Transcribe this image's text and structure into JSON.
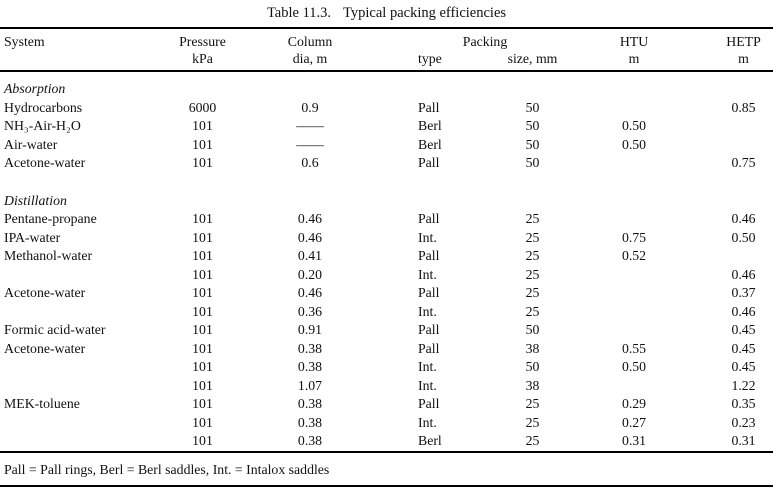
{
  "title": {
    "label": "Table 11.3.",
    "caption": "Typical packing efficiencies"
  },
  "header": {
    "system": "System",
    "pressure": "Pressure",
    "pressure_unit": "kPa",
    "column": "Column",
    "column_unit": "dia, m",
    "packing": "Packing",
    "packing_type": "type",
    "packing_size": "size, mm",
    "htu": "HTU",
    "htu_unit": "m",
    "hetp": "HETP",
    "hetp_unit": "m"
  },
  "sections": [
    {
      "name": "Absorption",
      "rows": [
        {
          "system": "Hydrocarbons",
          "pressure": "6000",
          "dia": "0.9",
          "type": "Pall",
          "size": "50",
          "htu": "",
          "hetp": "0.85"
        },
        {
          "system": "NH₃-Air-H₂O",
          "pressure": "101",
          "dia": "——",
          "type": "Berl",
          "size": "50",
          "htu": "0.50",
          "hetp": ""
        },
        {
          "system": "Air-water",
          "pressure": "101",
          "dia": "——",
          "type": "Berl",
          "size": "50",
          "htu": "0.50",
          "hetp": ""
        },
        {
          "system": "Acetone-water",
          "pressure": "101",
          "dia": "0.6",
          "type": "Pall",
          "size": "50",
          "htu": "",
          "hetp": "0.75"
        }
      ]
    },
    {
      "name": "Distillation",
      "rows": [
        {
          "system": "Pentane-propane",
          "pressure": "101",
          "dia": "0.46",
          "type": "Pall",
          "size": "25",
          "htu": "",
          "hetp": "0.46"
        },
        {
          "system": "IPA-water",
          "pressure": "101",
          "dia": "0.46",
          "type": "Int.",
          "size": "25",
          "htu": "0.75",
          "hetp": "0.50"
        },
        {
          "system": "Methanol-water",
          "pressure": "101",
          "dia": "0.41",
          "type": "Pall",
          "size": "25",
          "htu": "0.52",
          "hetp": ""
        },
        {
          "system": "",
          "pressure": "101",
          "dia": "0.20",
          "type": "Int.",
          "size": "25",
          "htu": "",
          "hetp": "0.46"
        },
        {
          "system": "Acetone-water",
          "pressure": "101",
          "dia": "0.46",
          "type": "Pall",
          "size": "25",
          "htu": "",
          "hetp": "0.37"
        },
        {
          "system": "",
          "pressure": "101",
          "dia": "0.36",
          "type": "Int.",
          "size": "25",
          "htu": "",
          "hetp": "0.46"
        },
        {
          "system": "Formic acid-water",
          "pressure": "101",
          "dia": "0.91",
          "type": "Pall",
          "size": "50",
          "htu": "",
          "hetp": "0.45"
        },
        {
          "system": "Acetone-water",
          "pressure": "101",
          "dia": "0.38",
          "type": "Pall",
          "size": "38",
          "htu": "0.55",
          "hetp": "0.45"
        },
        {
          "system": "",
          "pressure": "101",
          "dia": "0.38",
          "type": "Int.",
          "size": "50",
          "htu": "0.50",
          "hetp": "0.45"
        },
        {
          "system": "",
          "pressure": "101",
          "dia": "1.07",
          "type": "Int.",
          "size": "38",
          "htu": "",
          "hetp": "1.22"
        },
        {
          "system": "MEK-toluene",
          "pressure": "101",
          "dia": "0.38",
          "type": "Pall",
          "size": "25",
          "htu": "0.29",
          "hetp": "0.35"
        },
        {
          "system": "",
          "pressure": "101",
          "dia": "0.38",
          "type": "Int.",
          "size": "25",
          "htu": "0.27",
          "hetp": "0.23"
        },
        {
          "system": "",
          "pressure": "101",
          "dia": "0.38",
          "type": "Berl",
          "size": "25",
          "htu": "0.31",
          "hetp": "0.31"
        }
      ]
    }
  ],
  "footnote": "Pall = Pall rings, Berl = Berl saddles, Int. = Intalox saddles"
}
